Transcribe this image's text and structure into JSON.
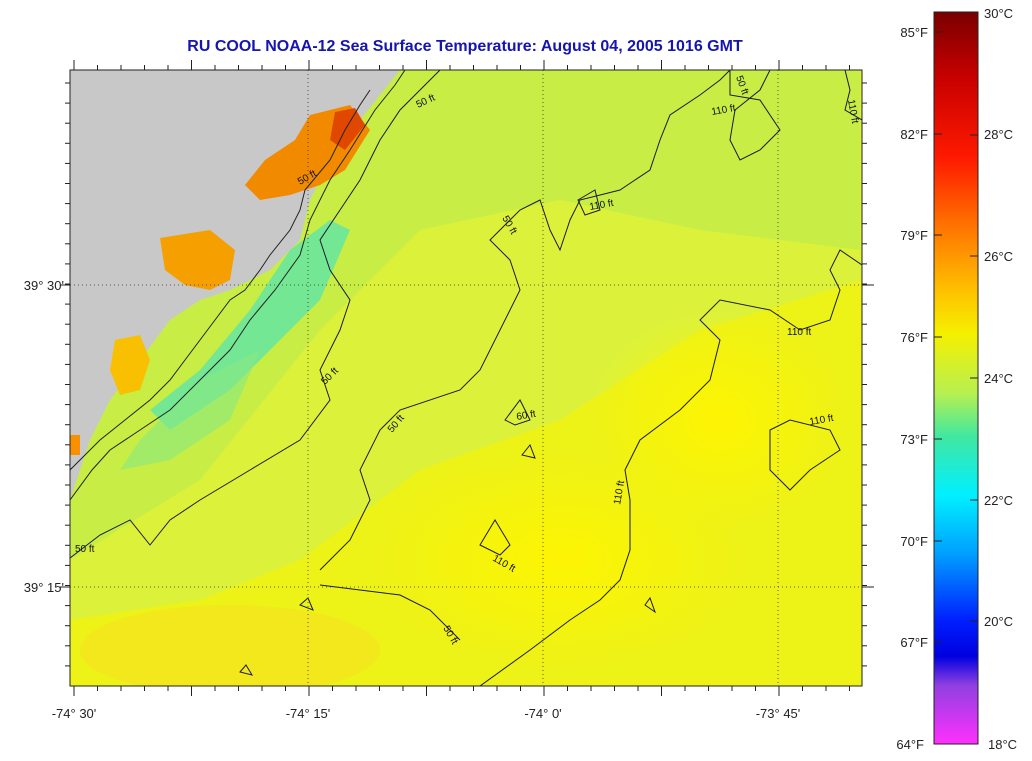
{
  "title": "RU COOL  NOAA-12  Sea Surface Temperature:  August 04, 2005 1016 GMT",
  "map": {
    "longitude_labels": [
      "-74° 30'",
      "-74° 15'",
      "-74° 0'",
      "-73° 45'"
    ],
    "latitude_labels": [
      "39° 30'",
      "39° 15'"
    ],
    "contour_labels": [
      "50 ft",
      "50 ft",
      "50 ft",
      "50 ft",
      "50 ft",
      "50 ft",
      "50 ft",
      "110 ft",
      "110 ft",
      "110 ft",
      "110 ft",
      "110 ft",
      "110 ft",
      "110 ft",
      "60 ft",
      "50 ft"
    ],
    "land_color": "#c8c8c8",
    "contour_color": "#1a1a2e"
  },
  "colorbar": {
    "fahrenheit_labels": [
      "85°F",
      "82°F",
      "79°F",
      "76°F",
      "73°F",
      "70°F",
      "67°F",
      "64°F"
    ],
    "celsius_labels": [
      "30°C",
      "28°C",
      "26°C",
      "24°C",
      "22°C",
      "20°C",
      "18°C"
    ],
    "colors": [
      "#7a0000",
      "#cc0000",
      "#ff2000",
      "#ff7000",
      "#ffc000",
      "#f5f000",
      "#c8f040",
      "#40e8a0",
      "#00f0ff",
      "#00a0ff",
      "#0030ff",
      "#0000e0",
      "#c040e0",
      "#ff30ff"
    ]
  }
}
